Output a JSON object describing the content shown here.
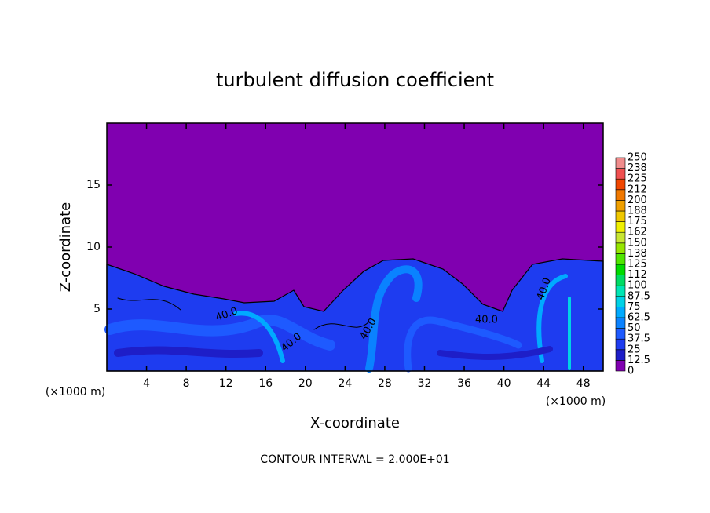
{
  "chart_data": {
    "type": "contour",
    "title": "turbulent diffusion coefficient",
    "xlabel": "X-coordinate",
    "ylabel": "Z-coordinate",
    "x_unit": "(×1000 m)",
    "footer": "CONTOUR INTERVAL = 2.000E+01",
    "contour_labels": [
      "40.0",
      "40.0",
      "40.0",
      "40.0",
      "40.0"
    ],
    "xlim": [
      0,
      50
    ],
    "xticks": [
      4,
      8,
      12,
      16,
      20,
      24,
      28,
      32,
      36,
      40,
      44,
      48
    ],
    "ylim": [
      0,
      20
    ],
    "yticks": [
      5,
      10,
      15
    ],
    "colorbar": {
      "levels": [
        0,
        12.5,
        25,
        37.5,
        50,
        62.5,
        75,
        87.5,
        100,
        {
          "value": 112.5,
          "label": "112"
        },
        125,
        {
          "value": 137.5,
          "label": "138"
        },
        150,
        {
          "value": 162.5,
          "label": "162"
        },
        175,
        {
          "value": 187.5,
          "label": "188"
        },
        200,
        {
          "value": 212.5,
          "label": "212"
        },
        225,
        {
          "value": 237.5,
          "label": "238"
        },
        250
      ],
      "colors": [
        "#8000b0",
        "#1e1ec8",
        "#1e3cf0",
        "#1e5aff",
        "#0a82ff",
        "#00aaff",
        "#00d2e6",
        "#00e6b4",
        "#00dc64",
        "#00dc00",
        "#50e600",
        "#96e600",
        "#c8e632",
        "#f0f000",
        "#f0c800",
        "#f0a000",
        "#f07800",
        "#f04600",
        "#f05050",
        "#f08c8c"
      ]
    }
  }
}
